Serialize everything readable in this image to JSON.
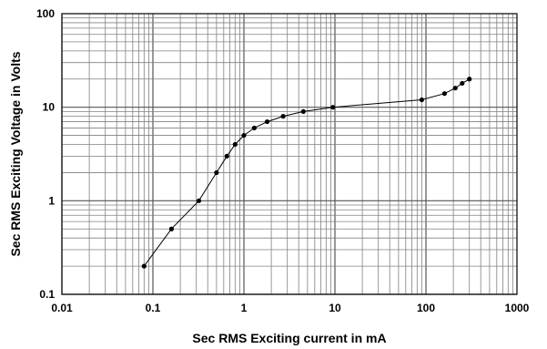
{
  "chart_data": {
    "type": "line",
    "xlabel": "Sec RMS Exciting current in mA",
    "ylabel": "Sec RMS Exciting Voltage in Volts",
    "xscale": "log",
    "yscale": "log",
    "xlim": [
      0.01,
      1000
    ],
    "ylim": [
      0.1,
      100
    ],
    "grid": true,
    "legend": "none",
    "xticks": [
      "0.01",
      "0.1",
      "1",
      "10",
      "100",
      "1000"
    ],
    "yticks": [
      "0.1",
      "1",
      "10",
      "100"
    ],
    "series": [
      {
        "x": [
          0.08,
          0.16,
          0.32,
          0.5,
          0.65,
          0.8,
          1.0,
          1.3,
          1.8,
          2.7,
          4.5,
          9.5,
          90,
          160,
          210,
          250,
          300
        ],
        "y": [
          0.2,
          0.5,
          1.0,
          2.0,
          3.0,
          4.0,
          5.0,
          6.0,
          7.0,
          8.0,
          9.0,
          10.0,
          12.0,
          14.0,
          16.0,
          18.0,
          20.0
        ]
      }
    ],
    "colors": {
      "line": "#000000",
      "grid": "#808080",
      "frame": "#000000"
    }
  }
}
